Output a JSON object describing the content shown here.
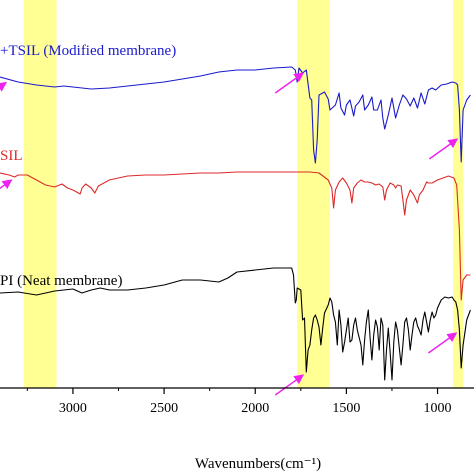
{
  "chart_data": {
    "type": "line",
    "xlabel": "Wavenumbers(cm⁻¹)",
    "xlim": [
      3400,
      800
    ],
    "x_reversed": true,
    "xticks": [
      3000,
      2500,
      2000,
      1500,
      1000
    ],
    "y_ticks_shown": false,
    "grid": false,
    "legend": "none",
    "highlight_bands": [
      {
        "from": 3270,
        "to": 3090,
        "color": "#ffff80"
      },
      {
        "from": 1770,
        "to": 1590,
        "color": "#ffff80"
      },
      {
        "from": 915,
        "to": 860,
        "color": "#ffff80"
      }
    ],
    "annotations": [
      {
        "type": "arrow",
        "x": 3350,
        "series": "+TSIL (Modified membrane)"
      },
      {
        "type": "arrow",
        "x": 1720,
        "series": "+TSIL (Modified membrane)"
      },
      {
        "type": "arrow",
        "x": 875,
        "series": "+TSIL (Modified membrane)"
      },
      {
        "type": "arrow",
        "x": 3320,
        "series": "SIL"
      },
      {
        "type": "arrow",
        "x": 1720,
        "series": "PI (Neat membrane)"
      },
      {
        "type": "arrow",
        "x": 880,
        "series": "PI (Neat membrane)"
      }
    ],
    "series": [
      {
        "name": "+TSIL (Modified membrane)",
        "color": "#1a1acc",
        "points": [
          [
            3400,
            77
          ],
          [
            3300,
            82
          ],
          [
            3200,
            85
          ],
          [
            3100,
            87
          ],
          [
            3050,
            86
          ],
          [
            3000,
            87
          ],
          [
            2900,
            89
          ],
          [
            2800,
            88
          ],
          [
            2700,
            86
          ],
          [
            2600,
            84
          ],
          [
            2500,
            82
          ],
          [
            2400,
            79
          ],
          [
            2300,
            76
          ],
          [
            2200,
            72
          ],
          [
            2100,
            70
          ],
          [
            2000,
            70
          ],
          [
            1900,
            68
          ],
          [
            1800,
            67
          ],
          [
            1780,
            70
          ],
          [
            1770,
            82
          ],
          [
            1760,
            68
          ],
          [
            1740,
            73
          ],
          [
            1720,
            70
          ],
          [
            1700,
            98
          ],
          [
            1690,
            100
          ],
          [
            1680,
            150
          ],
          [
            1670,
            163
          ],
          [
            1660,
            140
          ],
          [
            1650,
            95
          ],
          [
            1620,
            92
          ],
          [
            1600,
            99
          ],
          [
            1590,
            110
          ],
          [
            1560,
            105
          ],
          [
            1540,
            93
          ],
          [
            1530,
            108
          ],
          [
            1510,
            115
          ],
          [
            1500,
            105
          ],
          [
            1480,
            100
          ],
          [
            1460,
            116
          ],
          [
            1450,
            106
          ],
          [
            1430,
            102
          ],
          [
            1410,
            95
          ],
          [
            1400,
            110
          ],
          [
            1380,
            105
          ],
          [
            1360,
            97
          ],
          [
            1350,
            110
          ],
          [
            1330,
            110
          ],
          [
            1310,
            100
          ],
          [
            1300,
            118
          ],
          [
            1290,
            129
          ],
          [
            1270,
            115
          ],
          [
            1250,
            98
          ],
          [
            1230,
            118
          ],
          [
            1210,
            105
          ],
          [
            1190,
            95
          ],
          [
            1170,
            99
          ],
          [
            1150,
            106
          ],
          [
            1130,
            98
          ],
          [
            1110,
            108
          ],
          [
            1090,
            93
          ],
          [
            1070,
            104
          ],
          [
            1050,
            90
          ],
          [
            1030,
            88
          ],
          [
            1010,
            90
          ],
          [
            980,
            85
          ],
          [
            950,
            84
          ],
          [
            920,
            82
          ],
          [
            900,
            83
          ],
          [
            890,
            85
          ],
          [
            880,
            110
          ],
          [
            870,
            162
          ],
          [
            860,
            110
          ],
          [
            840,
            100
          ],
          [
            820,
            95
          ]
        ]
      },
      {
        "name": "SIL",
        "color": "#dd2a2a",
        "points": [
          [
            3400,
            173
          ],
          [
            3350,
            175
          ],
          [
            3320,
            177
          ],
          [
            3300,
            175
          ],
          [
            3250,
            175
          ],
          [
            3200,
            180
          ],
          [
            3150,
            185
          ],
          [
            3100,
            187
          ],
          [
            3060,
            184
          ],
          [
            3030,
            188
          ],
          [
            3000,
            190
          ],
          [
            2960,
            194
          ],
          [
            2950,
            188
          ],
          [
            2930,
            184
          ],
          [
            2900,
            188
          ],
          [
            2880,
            193
          ],
          [
            2860,
            186
          ],
          [
            2800,
            180
          ],
          [
            2700,
            176
          ],
          [
            2600,
            175
          ],
          [
            2500,
            175
          ],
          [
            2400,
            174
          ],
          [
            2300,
            173
          ],
          [
            2200,
            173
          ],
          [
            2100,
            172
          ],
          [
            2000,
            172
          ],
          [
            1900,
            172
          ],
          [
            1800,
            172
          ],
          [
            1700,
            172
          ],
          [
            1650,
            173
          ],
          [
            1600,
            180
          ],
          [
            1580,
            188
          ],
          [
            1570,
            208
          ],
          [
            1560,
            190
          ],
          [
            1540,
            182
          ],
          [
            1520,
            178
          ],
          [
            1500,
            183
          ],
          [
            1480,
            190
          ],
          [
            1470,
            203
          ],
          [
            1460,
            188
          ],
          [
            1440,
            183
          ],
          [
            1420,
            180
          ],
          [
            1400,
            182
          ],
          [
            1380,
            182
          ],
          [
            1360,
            183
          ],
          [
            1340,
            185
          ],
          [
            1320,
            184
          ],
          [
            1300,
            187
          ],
          [
            1290,
            200
          ],
          [
            1280,
            190
          ],
          [
            1260,
            183
          ],
          [
            1240,
            185
          ],
          [
            1230,
            188
          ],
          [
            1220,
            185
          ],
          [
            1200,
            186
          ],
          [
            1190,
            200
          ],
          [
            1180,
            215
          ],
          [
            1170,
            200
          ],
          [
            1150,
            190
          ],
          [
            1130,
            195
          ],
          [
            1110,
            203
          ],
          [
            1100,
            195
          ],
          [
            1080,
            190
          ],
          [
            1060,
            182
          ],
          [
            1050,
            183
          ],
          [
            1030,
            183
          ],
          [
            1000,
            180
          ],
          [
            970,
            178
          ],
          [
            940,
            176
          ],
          [
            910,
            178
          ],
          [
            895,
            185
          ],
          [
            880,
            230
          ],
          [
            870,
            300
          ],
          [
            860,
            280
          ],
          [
            840,
            275
          ],
          [
            820,
            275
          ]
        ]
      },
      {
        "name": "PI (Neat membrane)",
        "color": "#000000",
        "points": [
          [
            3400,
            293
          ],
          [
            3300,
            292
          ],
          [
            3200,
            295
          ],
          [
            3100,
            291
          ],
          [
            3050,
            290
          ],
          [
            3000,
            289
          ],
          [
            2950,
            293
          ],
          [
            2900,
            290
          ],
          [
            2850,
            288
          ],
          [
            2800,
            290
          ],
          [
            2700,
            290
          ],
          [
            2600,
            288
          ],
          [
            2500,
            285
          ],
          [
            2400,
            280
          ],
          [
            2300,
            280
          ],
          [
            2200,
            282
          ],
          [
            2150,
            278
          ],
          [
            2100,
            272
          ],
          [
            2000,
            270
          ],
          [
            1900,
            268
          ],
          [
            1800,
            268
          ],
          [
            1790,
            275
          ],
          [
            1780,
            303
          ],
          [
            1775,
            300
          ],
          [
            1770,
            288
          ],
          [
            1750,
            290
          ],
          [
            1740,
            320
          ],
          [
            1730,
            318
          ],
          [
            1720,
            372
          ],
          [
            1710,
            350
          ],
          [
            1700,
            345
          ],
          [
            1690,
            330
          ],
          [
            1680,
            318
          ],
          [
            1670,
            315
          ],
          [
            1660,
            320
          ],
          [
            1650,
            327
          ],
          [
            1640,
            345
          ],
          [
            1630,
            328
          ],
          [
            1620,
            313
          ],
          [
            1600,
            305
          ],
          [
            1590,
            298
          ],
          [
            1580,
            302
          ],
          [
            1570,
            315
          ],
          [
            1560,
            322
          ],
          [
            1550,
            345
          ],
          [
            1540,
            310
          ],
          [
            1530,
            325
          ],
          [
            1520,
            352
          ],
          [
            1510,
            342
          ],
          [
            1500,
            330
          ],
          [
            1490,
            318
          ],
          [
            1480,
            342
          ],
          [
            1470,
            340
          ],
          [
            1460,
            325
          ],
          [
            1450,
            318
          ],
          [
            1440,
            330
          ],
          [
            1420,
            345
          ],
          [
            1410,
            365
          ],
          [
            1400,
            340
          ],
          [
            1390,
            322
          ],
          [
            1380,
            310
          ],
          [
            1370,
            338
          ],
          [
            1360,
            360
          ],
          [
            1350,
            335
          ],
          [
            1340,
            320
          ],
          [
            1330,
            327
          ],
          [
            1320,
            350
          ],
          [
            1310,
            318
          ],
          [
            1300,
            325
          ],
          [
            1290,
            380
          ],
          [
            1280,
            350
          ],
          [
            1270,
            328
          ],
          [
            1260,
            352
          ],
          [
            1250,
            380
          ],
          [
            1240,
            342
          ],
          [
            1230,
            322
          ],
          [
            1220,
            330
          ],
          [
            1210,
            348
          ],
          [
            1200,
            365
          ],
          [
            1190,
            345
          ],
          [
            1180,
            322
          ],
          [
            1170,
            318
          ],
          [
            1160,
            330
          ],
          [
            1150,
            350
          ],
          [
            1140,
            335
          ],
          [
            1130,
            322
          ],
          [
            1120,
            318
          ],
          [
            1110,
            326
          ],
          [
            1100,
            330
          ],
          [
            1090,
            335
          ],
          [
            1080,
            320
          ],
          [
            1070,
            312
          ],
          [
            1060,
            322
          ],
          [
            1050,
            332
          ],
          [
            1040,
            320
          ],
          [
            1030,
            312
          ],
          [
            1020,
            318
          ],
          [
            1010,
            315
          ],
          [
            1000,
            308
          ],
          [
            980,
            300
          ],
          [
            960,
            297
          ],
          [
            940,
            298
          ],
          [
            920,
            297
          ],
          [
            910,
            300
          ],
          [
            900,
            302
          ],
          [
            890,
            310
          ],
          [
            880,
            330
          ],
          [
            870,
            368
          ],
          [
            860,
            345
          ],
          [
            840,
            320
          ],
          [
            820,
            310
          ]
        ]
      }
    ]
  },
  "labels": {
    "series_1": "+TSIL (Modified membrane)",
    "series_2": "SIL",
    "series_3": "PI (Neat membrane)"
  }
}
